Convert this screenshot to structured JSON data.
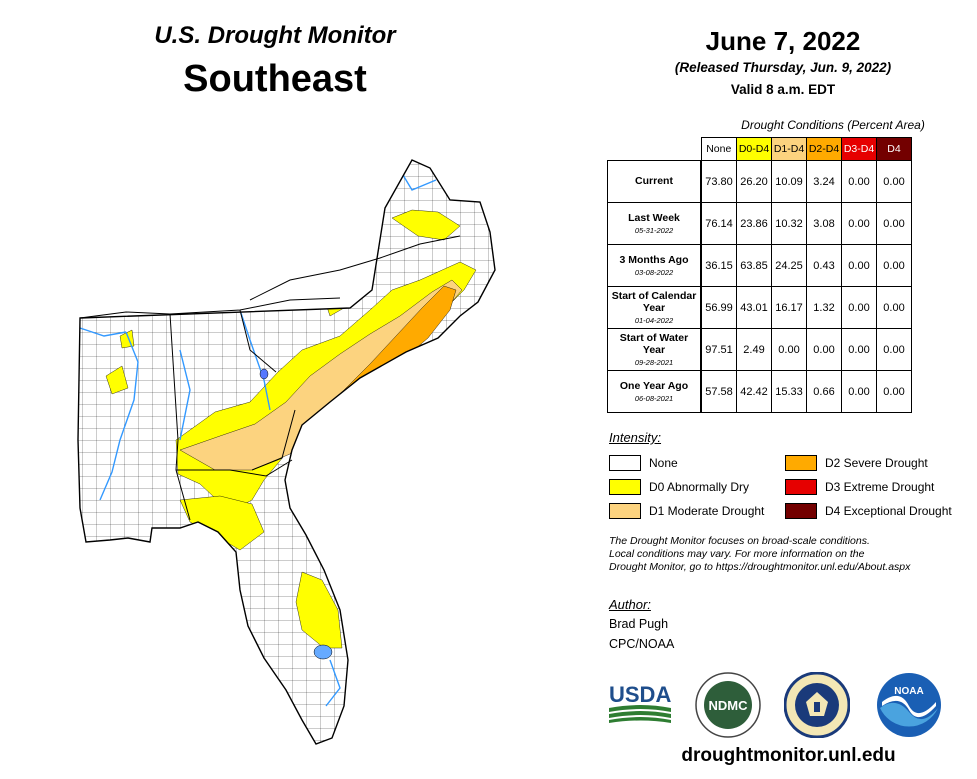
{
  "header": {
    "title": "U.S. Drought Monitor",
    "region": "Southeast"
  },
  "date": {
    "main": "June 7, 2022",
    "released": "(Released Thursday, Jun. 9, 2022)",
    "valid": "Valid 8 a.m. EDT"
  },
  "table": {
    "caption": "Drought Conditions (Percent Area)",
    "columns": [
      "None",
      "D0-D4",
      "D1-D4",
      "D2-D4",
      "D3-D4",
      "D4"
    ],
    "rows": [
      {
        "label": "Current",
        "date": "",
        "values": [
          "73.80",
          "26.20",
          "10.09",
          "3.24",
          "0.00",
          "0.00"
        ]
      },
      {
        "label": "Last Week",
        "date": "05-31-2022",
        "values": [
          "76.14",
          "23.86",
          "10.32",
          "3.08",
          "0.00",
          "0.00"
        ]
      },
      {
        "label": "3 Months Ago",
        "date": "03-08-2022",
        "values": [
          "36.15",
          "63.85",
          "24.25",
          "0.43",
          "0.00",
          "0.00"
        ]
      },
      {
        "label": "Start of Calendar Year",
        "date": "01-04-2022",
        "values": [
          "56.99",
          "43.01",
          "16.17",
          "1.32",
          "0.00",
          "0.00"
        ]
      },
      {
        "label": "Start of Water Year",
        "date": "09-28-2021",
        "values": [
          "97.51",
          "2.49",
          "0.00",
          "0.00",
          "0.00",
          "0.00"
        ]
      },
      {
        "label": "One Year Ago",
        "date": "06-08-2021",
        "values": [
          "57.58",
          "42.42",
          "15.33",
          "0.66",
          "0.00",
          "0.00"
        ]
      }
    ]
  },
  "legend": {
    "title": "Intensity:",
    "items": [
      {
        "label": "None",
        "color": "#ffffff"
      },
      {
        "label": "D0 Abnormally Dry",
        "color": "#ffff00"
      },
      {
        "label": "D1 Moderate Drought",
        "color": "#fcd37f"
      },
      {
        "label": "D2 Severe Drought",
        "color": "#ffaa00"
      },
      {
        "label": "D3 Extreme Drought",
        "color": "#e60000"
      },
      {
        "label": "D4 Exceptional Drought",
        "color": "#730000"
      }
    ]
  },
  "note": [
    "The Drought Monitor focuses on broad-scale conditions.",
    "Local conditions may vary. For more information on the",
    "Drought Monitor, go to https://droughtmonitor.unl.edu/About.aspx"
  ],
  "author": {
    "label": "Author:",
    "name": "Brad Pugh",
    "org": "CPC/NOAA"
  },
  "logos": {
    "usda": "USDA",
    "ndmc": "NDMC",
    "noaa": "NOAA"
  },
  "url": "droughtmonitor.unl.edu",
  "colors": {
    "d0": "#ffff00",
    "d1": "#fcd37f",
    "d2": "#ffaa00",
    "d3": "#e60000",
    "d4": "#730000",
    "water": "#3399ff"
  }
}
